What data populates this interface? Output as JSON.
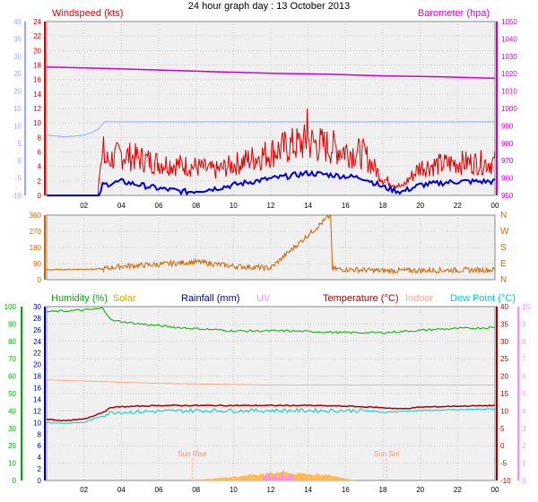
{
  "title": "24 hour graph day : 13 October 2013",
  "colors": {
    "wind": "#dd0000",
    "wind_avg": "#0000cc",
    "baro": "#cc00cc",
    "temp_scale": "#99aaff",
    "winddir": "#cc6600",
    "humidity": "#00aa00",
    "solar": "#ccaa00",
    "rain": "#000099",
    "uv": "#ff88ff",
    "temperature": "#aa0000",
    "indoor": "#ffaa88",
    "dewpoint": "#00cccc",
    "grid": "#cccccc",
    "plot_bg": "#f0f0f0"
  },
  "x_ticks": [
    "02",
    "04",
    "06",
    "08",
    "10",
    "12",
    "14",
    "16",
    "18",
    "20",
    "22",
    "00"
  ],
  "sun_rise_label": "Sun Rise",
  "sun_set_label": "Sun Set",
  "chart_data": [
    {
      "type": "line",
      "name": "wind_baro",
      "legend_left": "Windspeed (kts)",
      "legend_right": "Barometer (hpa)",
      "x_range_hours": [
        0,
        24
      ],
      "left_ticks_outer": [
        "40",
        "35",
        "30",
        "25",
        "20",
        "15",
        "10",
        "5",
        "0",
        "-5",
        "-10"
      ],
      "left_ticks_inner": [
        "24",
        "22",
        "20",
        "18",
        "16",
        "14",
        "12",
        "10",
        "8",
        "6",
        "4",
        "2",
        "0"
      ],
      "right_ticks": [
        "1050",
        "1040",
        "1030",
        "1020",
        "1010",
        "1000",
        "990",
        "980",
        "970",
        "960",
        "950"
      ],
      "windspeed_range": [
        0,
        25
      ],
      "baro_range": [
        947,
        1051
      ],
      "temp_scale_range": [
        -10,
        42
      ],
      "barometer": [
        [
          0,
          1023.8
        ],
        [
          3,
          1023
        ],
        [
          6,
          1022
        ],
        [
          9,
          1021
        ],
        [
          12,
          1020
        ],
        [
          15,
          1019.5
        ],
        [
          18,
          1018.5
        ],
        [
          21,
          1018
        ],
        [
          24,
          1017
        ]
      ],
      "temp_outline": [
        [
          0,
          8
        ],
        [
          1,
          7.5
        ],
        [
          2,
          8
        ],
        [
          2.5,
          9
        ],
        [
          2.8,
          10
        ],
        [
          3.1,
          12
        ],
        [
          4,
          12
        ],
        [
          8,
          12
        ],
        [
          12,
          12
        ],
        [
          16,
          12
        ],
        [
          19.5,
          12
        ],
        [
          20,
          12
        ],
        [
          24,
          12
        ]
      ],
      "gust_profile": [
        [
          0,
          1
        ],
        [
          2.5,
          1
        ],
        [
          3,
          4
        ],
        [
          4,
          5
        ],
        [
          6,
          4
        ],
        [
          8,
          3.5
        ],
        [
          9,
          3
        ],
        [
          11,
          4.5
        ],
        [
          13,
          6
        ],
        [
          14,
          6.5
        ],
        [
          15,
          6
        ],
        [
          17,
          5
        ],
        [
          18,
          2
        ],
        [
          19,
          1
        ],
        [
          20,
          3.5
        ],
        [
          22,
          4
        ],
        [
          24,
          4
        ]
      ],
      "avg_profile": [
        [
          0,
          0
        ],
        [
          2.8,
          0
        ],
        [
          3,
          1.5
        ],
        [
          4,
          2
        ],
        [
          6,
          1
        ],
        [
          7.5,
          0.5
        ],
        [
          9,
          1
        ],
        [
          11,
          2
        ],
        [
          13,
          2.8
        ],
        [
          14,
          3.2
        ],
        [
          15,
          3
        ],
        [
          17,
          2.5
        ],
        [
          18,
          1.2
        ],
        [
          19,
          0.5
        ],
        [
          20,
          1.5
        ],
        [
          22,
          2
        ],
        [
          24,
          2
        ]
      ]
    },
    {
      "type": "line",
      "name": "wind_direction",
      "left_ticks": [
        "360",
        "270",
        "180",
        "90",
        "0"
      ],
      "right_labels": [
        "N",
        "W",
        "S",
        "E",
        "N"
      ],
      "y_range": [
        0,
        360
      ],
      "direction": [
        [
          0,
          55
        ],
        [
          3,
          60
        ],
        [
          4,
          75
        ],
        [
          6,
          85
        ],
        [
          8,
          100
        ],
        [
          10,
          75
        ],
        [
          12,
          65
        ],
        [
          15.2,
          360
        ],
        [
          15.3,
          60
        ],
        [
          18,
          50
        ],
        [
          24,
          55
        ]
      ]
    },
    {
      "type": "line",
      "name": "temp_humidity",
      "legends": [
        "Humidity (%)",
        "Solar",
        "Rainfall (mm)",
        "UV",
        "Temperature (°C)",
        "Indoor",
        "Dew Point (°C)"
      ],
      "left_ticks_outer": [
        "100",
        "90",
        "80",
        "70",
        "60",
        "50",
        "40",
        "30",
        "20",
        "10",
        "0"
      ],
      "left_ticks_inner": [
        "30",
        "28",
        "26",
        "24",
        "22",
        "20",
        "18",
        "16",
        "14",
        "12",
        "10",
        "8",
        "6",
        "4",
        "2",
        "0"
      ],
      "right_ticks_temp": [
        "40",
        "35",
        "30",
        "25",
        "20",
        "15",
        "10",
        "5",
        "0",
        "-5",
        "-10"
      ],
      "right_ticks_uv": [
        "10",
        "9",
        "8",
        "7",
        "6",
        "5",
        "4",
        "3",
        "2",
        "1",
        "0"
      ],
      "humidity_range": [
        0,
        100
      ],
      "temp_range": [
        -10,
        41
      ],
      "humidity": [
        [
          0,
          97
        ],
        [
          2,
          98
        ],
        [
          3,
          99
        ],
        [
          3.5,
          92
        ],
        [
          5,
          90
        ],
        [
          7,
          88
        ],
        [
          10,
          86
        ],
        [
          13,
          86
        ],
        [
          16,
          85
        ],
        [
          18,
          85
        ],
        [
          21,
          87
        ],
        [
          24,
          88
        ]
      ],
      "temperature": [
        [
          0,
          8
        ],
        [
          1,
          7.5
        ],
        [
          2,
          8
        ],
        [
          3,
          10
        ],
        [
          3.5,
          11.5
        ],
        [
          6,
          12
        ],
        [
          10,
          12
        ],
        [
          14,
          12
        ],
        [
          16,
          11.8
        ],
        [
          17.5,
          11.5
        ],
        [
          19,
          11
        ],
        [
          20,
          11.5
        ],
        [
          22,
          11.8
        ],
        [
          24,
          12
        ]
      ],
      "indoor": [
        [
          0,
          19.5
        ],
        [
          6,
          18.5
        ],
        [
          12,
          18
        ],
        [
          18,
          18
        ],
        [
          24,
          18
        ]
      ],
      "dewpoint": [
        [
          0,
          7
        ],
        [
          1,
          6.8
        ],
        [
          2,
          7
        ],
        [
          3,
          9
        ],
        [
          3.5,
          10
        ],
        [
          8,
          10.5
        ],
        [
          12,
          10.5
        ],
        [
          17,
          10.5
        ],
        [
          18,
          10
        ],
        [
          20,
          10.5
        ],
        [
          24,
          11
        ]
      ],
      "solar_profile": [
        [
          7.8,
          0
        ],
        [
          9,
          1
        ],
        [
          10,
          2
        ],
        [
          11,
          3
        ],
        [
          12,
          4
        ],
        [
          12.5,
          5
        ],
        [
          13,
          4
        ],
        [
          14,
          3.5
        ],
        [
          15,
          3
        ],
        [
          16,
          1
        ],
        [
          16.5,
          0
        ]
      ],
      "sunrise_hour": 7.8,
      "sunset_hour": 18.2
    }
  ]
}
